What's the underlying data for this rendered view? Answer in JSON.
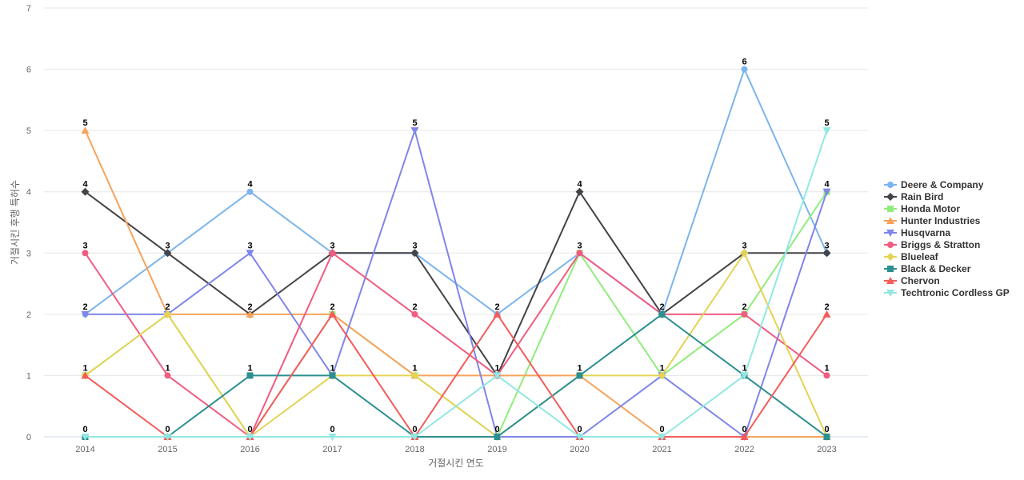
{
  "chart_data": {
    "type": "line",
    "title": "",
    "xlabel": "거절시킨 연도",
    "ylabel": "거절시킨 후행 특허수",
    "x": [
      "2014",
      "2015",
      "2016",
      "2017",
      "2018",
      "2019",
      "2020",
      "2021",
      "2022",
      "2023"
    ],
    "ylim": [
      0,
      7
    ],
    "yticks": [
      0,
      1,
      2,
      3,
      4,
      5,
      6,
      7
    ],
    "grid": true,
    "legend_position": "right",
    "series": [
      {
        "name": "Deere & Company",
        "color": "#7cb5ec",
        "marker": "circle",
        "values": [
          2,
          3,
          4,
          3,
          3,
          2,
          3,
          2,
          6,
          3
        ]
      },
      {
        "name": "Rain Bird",
        "color": "#434348",
        "marker": "diamond",
        "values": [
          4,
          3,
          2,
          3,
          3,
          1,
          4,
          2,
          3,
          3
        ]
      },
      {
        "name": "Honda Motor",
        "color": "#90ed7d",
        "marker": "square",
        "values": [
          1,
          2,
          0,
          2,
          1,
          0,
          3,
          1,
          2,
          4
        ]
      },
      {
        "name": "Hunter Industries",
        "color": "#f7a35c",
        "marker": "triangle",
        "values": [
          5,
          2,
          2,
          2,
          1,
          1,
          1,
          0,
          0,
          0
        ]
      },
      {
        "name": "Husqvarna",
        "color": "#8085e9",
        "marker": "triangle-down",
        "values": [
          2,
          2,
          3,
          1,
          5,
          0,
          0,
          1,
          0,
          4
        ]
      },
      {
        "name": "Briggs & Stratton",
        "color": "#f15c80",
        "marker": "circle",
        "values": [
          3,
          1,
          0,
          3,
          2,
          1,
          3,
          2,
          2,
          1
        ]
      },
      {
        "name": "Blueleaf",
        "color": "#e4d354",
        "marker": "diamond",
        "values": [
          1,
          2,
          0,
          1,
          1,
          0,
          1,
          1,
          3,
          0
        ]
      },
      {
        "name": "Black & Decker",
        "color": "#2b908f",
        "marker": "square",
        "values": [
          0,
          0,
          1,
          1,
          0,
          0,
          1,
          2,
          1,
          0
        ]
      },
      {
        "name": "Chervon",
        "color": "#f45b5b",
        "marker": "triangle",
        "values": [
          1,
          0,
          0,
          2,
          0,
          2,
          0,
          0,
          0,
          2
        ]
      },
      {
        "name": "Techtronic Cordless GP",
        "color": "#91e8e1",
        "marker": "triangle-down",
        "values": [
          0,
          0,
          0,
          0,
          0,
          1,
          0,
          0,
          1,
          5
        ]
      }
    ],
    "data_labels": [
      {
        "x": "2014",
        "values": [
          5,
          4,
          3,
          2,
          1,
          0
        ]
      },
      {
        "x": "2015",
        "values": [
          3,
          2,
          1,
          0
        ]
      },
      {
        "x": "2016",
        "values": [
          4,
          3,
          2,
          1,
          0
        ]
      },
      {
        "x": "2017",
        "values": [
          3,
          2,
          1,
          0
        ]
      },
      {
        "x": "2018",
        "values": [
          5,
          3,
          2,
          1,
          0
        ]
      },
      {
        "x": "2019",
        "values": [
          2,
          1,
          0
        ]
      },
      {
        "x": "2020",
        "values": [
          4,
          3,
          1,
          0
        ]
      },
      {
        "x": "2021",
        "values": [
          2,
          1,
          0
        ]
      },
      {
        "x": "2022",
        "values": [
          6,
          3,
          2,
          1,
          0
        ]
      },
      {
        "x": "2023",
        "values": [
          5,
          4,
          3,
          2,
          1,
          0
        ]
      }
    ]
  }
}
